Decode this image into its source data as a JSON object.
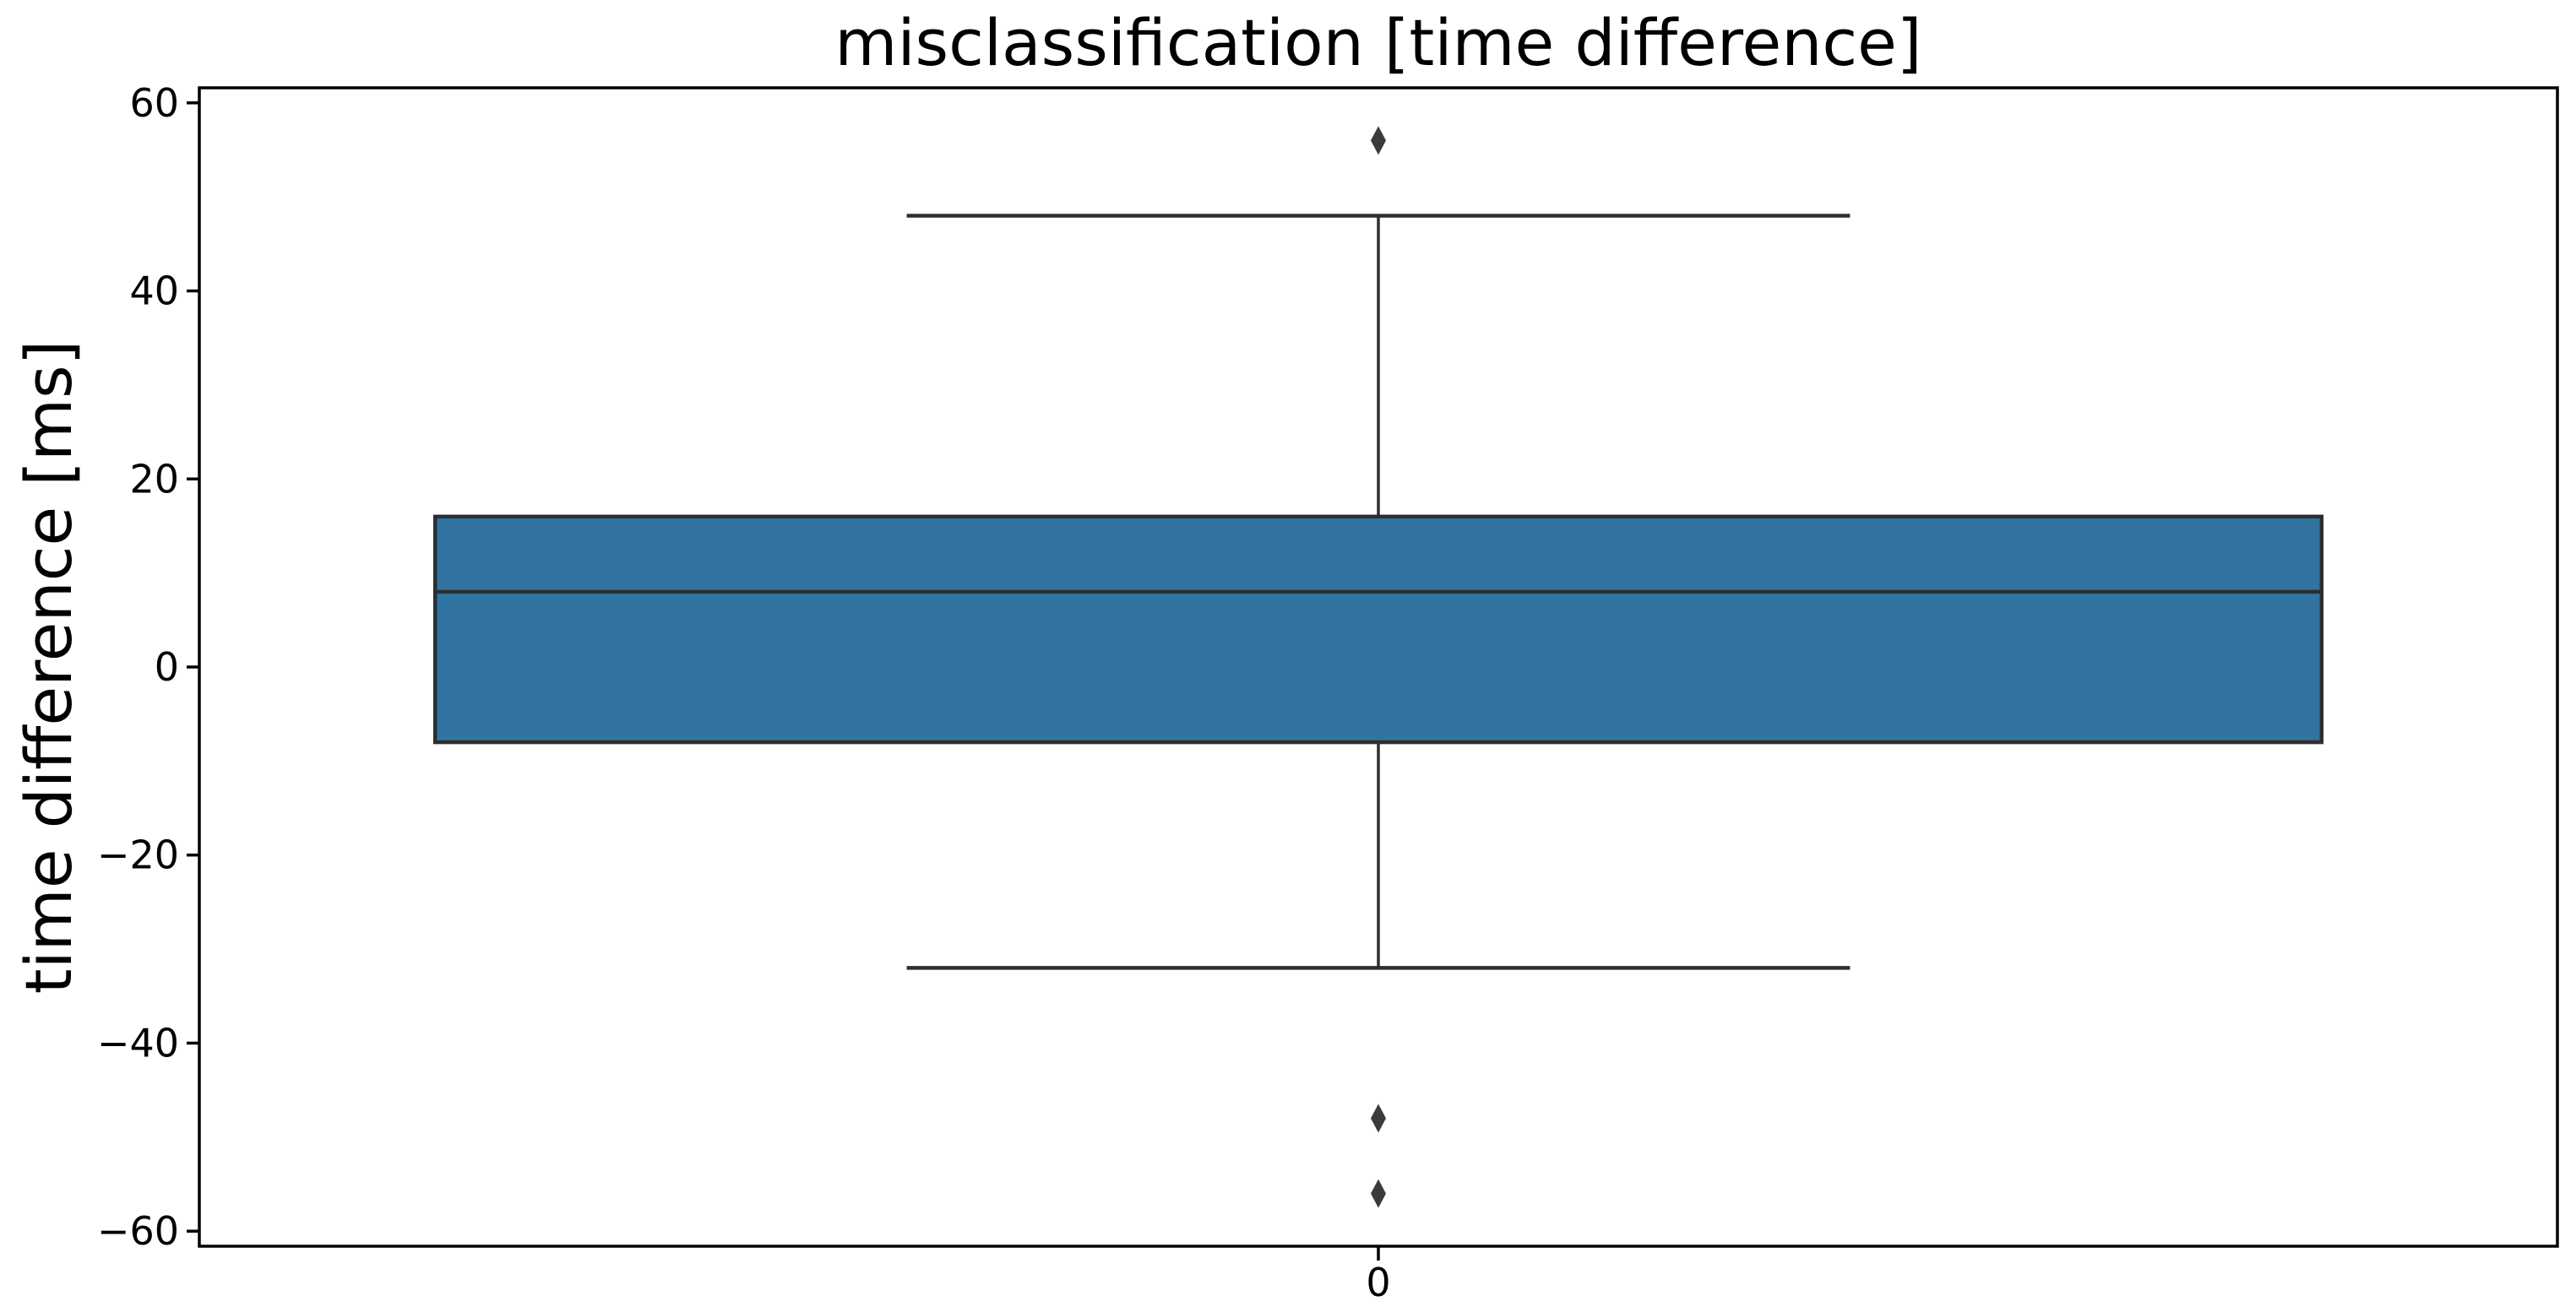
{
  "figure": {
    "title": "misclassification [time difference]",
    "background_color": "#ffffff"
  },
  "axes": {
    "ylabel": "time difference [ms]",
    "xlabel": "",
    "x_tick_labels": [
      "0"
    ],
    "y_tick_labels": [
      "60",
      "40",
      "20",
      "0",
      "−20",
      "−40",
      "−60"
    ]
  },
  "chart_data": {
    "type": "box",
    "title": "misclassification [time difference]",
    "xlabel": "",
    "ylabel": "time difference [ms]",
    "categories": [
      "0"
    ],
    "series": [
      {
        "name": "0",
        "whisker_low": -32,
        "q1": -8,
        "median": 8,
        "q3": 16,
        "whisker_high": 48,
        "outliers": [
          56,
          -48,
          -56
        ]
      }
    ],
    "ylim": [
      -61.6,
      61.6
    ],
    "yticks": [
      60,
      40,
      20,
      0,
      -20,
      -40,
      -60
    ],
    "grid": false,
    "legend": "none",
    "orientation": "vertical",
    "box_fill_color": "#3274a1",
    "box_line_color": "#2e2e2e",
    "whisker_color": "#2e2e2e",
    "flier_color": "#3b3b3b",
    "spine_color": "#000000",
    "text_color": "#000000"
  }
}
